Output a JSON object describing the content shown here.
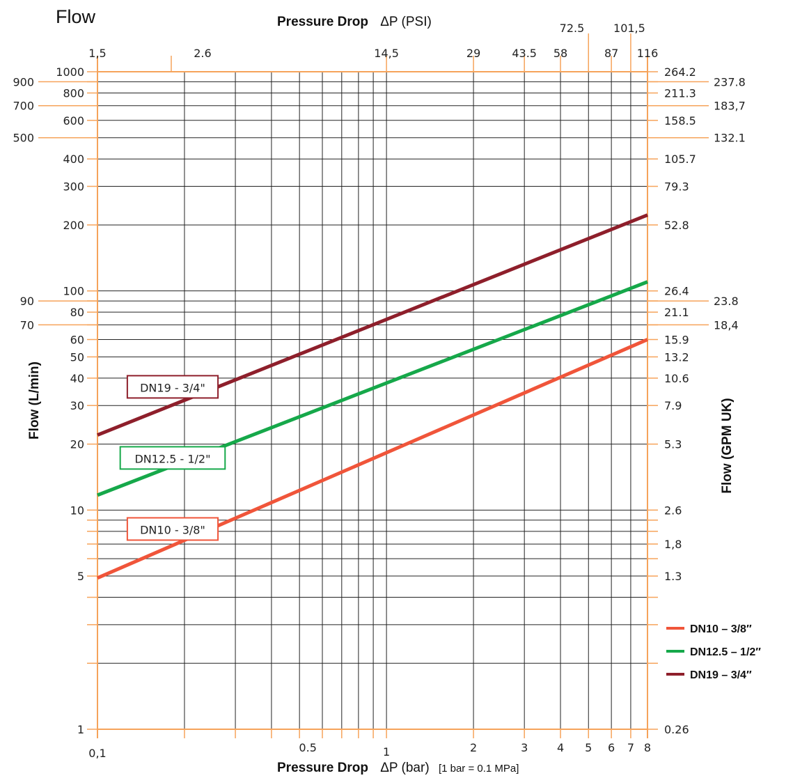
{
  "chart_data": {
    "type": "line",
    "title": "Flow",
    "top_axis": {
      "label_bold": "Pressure Drop",
      "label_rest": "ΔP (PSI)",
      "ticks": [
        {
          "value": 0.1,
          "label": "1,5",
          "row": 1
        },
        {
          "value": 0.18,
          "label": "2.6",
          "row": 1
        },
        {
          "value": 1,
          "label": "14,5",
          "row": 1
        },
        {
          "value": 2,
          "label": "29",
          "row": 1
        },
        {
          "value": 3,
          "label": "43.5",
          "row": 1
        },
        {
          "value": 4,
          "label": "58",
          "row": 1
        },
        {
          "value": 5,
          "label": "72.5",
          "row": 2
        },
        {
          "value": 6,
          "label": "87",
          "row": 1
        },
        {
          "value": 7,
          "label": "101,5",
          "row": 2
        },
        {
          "value": 8,
          "label": "116",
          "row": 1
        }
      ]
    },
    "bottom_axis": {
      "label_bold": "Pressure Drop",
      "label_rest": "ΔP (bar)",
      "note": "[1 bar = 0.1 MPa]",
      "min": 0.1,
      "max": 8,
      "scale": "log",
      "gridlines": [
        0.1,
        0.2,
        0.3,
        0.4,
        0.5,
        0.6,
        0.7,
        0.8,
        0.9,
        1,
        2,
        3,
        4,
        5,
        6,
        7,
        8
      ],
      "ticks": [
        {
          "value": 0.1,
          "label": "0,1"
        },
        {
          "value": 0.5,
          "label": "0.5"
        },
        {
          "value": 1,
          "label": "1"
        },
        {
          "value": 2,
          "label": "2"
        },
        {
          "value": 3,
          "label": "3"
        },
        {
          "value": 4,
          "label": "4"
        },
        {
          "value": 5,
          "label": "5"
        },
        {
          "value": 6,
          "label": "6"
        },
        {
          "value": 7,
          "label": "7"
        },
        {
          "value": 8,
          "label": "8"
        }
      ]
    },
    "left_axis": {
      "label": "Flow (L/min)",
      "min": 1,
      "max": 1000,
      "scale": "log",
      "gridlines": [
        1,
        2,
        3,
        4,
        5,
        6,
        7,
        8,
        9,
        10,
        20,
        30,
        40,
        50,
        60,
        70,
        80,
        90,
        100,
        200,
        300,
        400,
        500,
        600,
        700,
        800,
        900,
        1000
      ],
      "ticks": [
        {
          "value": 1000,
          "label": "1000",
          "col": "inner"
        },
        {
          "value": 900,
          "label": "900",
          "col": "outer"
        },
        {
          "value": 800,
          "label": "800",
          "col": "inner"
        },
        {
          "value": 700,
          "label": "700",
          "col": "outer"
        },
        {
          "value": 600,
          "label": "600",
          "col": "inner"
        },
        {
          "value": 500,
          "label": "500",
          "col": "outer"
        },
        {
          "value": 400,
          "label": "400",
          "col": "inner"
        },
        {
          "value": 300,
          "label": "300",
          "col": "inner"
        },
        {
          "value": 200,
          "label": "200",
          "col": "inner"
        },
        {
          "value": 100,
          "label": "100",
          "col": "inner"
        },
        {
          "value": 90,
          "label": "90",
          "col": "outer"
        },
        {
          "value": 80,
          "label": "80",
          "col": "inner"
        },
        {
          "value": 70,
          "label": "70",
          "col": "outer"
        },
        {
          "value": 60,
          "label": "60",
          "col": "inner"
        },
        {
          "value": 50,
          "label": "50",
          "col": "inner"
        },
        {
          "value": 40,
          "label": "40",
          "col": "inner"
        },
        {
          "value": 30,
          "label": "30",
          "col": "inner"
        },
        {
          "value": 20,
          "label": "20",
          "col": "inner"
        },
        {
          "value": 10,
          "label": "10",
          "col": "inner"
        },
        {
          "value": 5,
          "label": "5",
          "col": "inner"
        },
        {
          "value": 1,
          "label": "1",
          "col": "inner"
        }
      ]
    },
    "right_axis": {
      "label": "Flow (GPM UK)",
      "ticks": [
        {
          "value": 1000,
          "label": "264.2",
          "col": "inner"
        },
        {
          "value": 900,
          "label": "237.8",
          "col": "outer"
        },
        {
          "value": 800,
          "label": "211.3",
          "col": "inner"
        },
        {
          "value": 700,
          "label": "183,7",
          "col": "outer"
        },
        {
          "value": 600,
          "label": "158.5",
          "col": "inner"
        },
        {
          "value": 500,
          "label": "132.1",
          "col": "outer"
        },
        {
          "value": 400,
          "label": "105.7",
          "col": "inner"
        },
        {
          "value": 300,
          "label": "79.3",
          "col": "inner"
        },
        {
          "value": 200,
          "label": "52.8",
          "col": "inner"
        },
        {
          "value": 100,
          "label": "26.4",
          "col": "inner"
        },
        {
          "value": 90,
          "label": "23.8",
          "col": "outer"
        },
        {
          "value": 80,
          "label": "21.1",
          "col": "inner"
        },
        {
          "value": 70,
          "label": "18,4",
          "col": "outer"
        },
        {
          "value": 60,
          "label": "15.9",
          "col": "inner"
        },
        {
          "value": 50,
          "label": "13.2",
          "col": "inner"
        },
        {
          "value": 40,
          "label": "10.6",
          "col": "inner"
        },
        {
          "value": 30,
          "label": "7.9",
          "col": "inner"
        },
        {
          "value": 20,
          "label": "5.3",
          "col": "inner"
        },
        {
          "value": 10,
          "label": "2.6",
          "col": "inner"
        },
        {
          "value": 7,
          "label": "1,8",
          "col": "inner"
        },
        {
          "value": 5,
          "label": "1.3",
          "col": "inner"
        },
        {
          "value": 1,
          "label": "0.26",
          "col": "inner"
        }
      ]
    },
    "series": [
      {
        "name": "DN10 – 3/8″",
        "box_label": "DN10 - 3/8\"",
        "color": "#f0553a",
        "x": [
          0.1,
          8
        ],
        "y": [
          4.9,
          60
        ],
        "box_at": {
          "x": 0.18,
          "y": 8.2
        }
      },
      {
        "name": "DN12.5 – 1/2″",
        "box_label": "DN12.5 - 1/2\"",
        "color": "#16a84a",
        "x": [
          0.1,
          8
        ],
        "y": [
          11.7,
          110
        ],
        "box_at": {
          "x": 0.18,
          "y": 17.3
        }
      },
      {
        "name": "DN19 – 3/4″",
        "box_label": "DN19 - 3/4\"",
        "color": "#8e1f2b",
        "x": [
          0.1,
          8
        ],
        "y": [
          22,
          222
        ],
        "box_at": {
          "x": 0.18,
          "y": 36.5
        }
      }
    ],
    "legend_position": "bottom-right",
    "colors": {
      "frame": "#f6a35a",
      "grid": "#222222"
    }
  }
}
